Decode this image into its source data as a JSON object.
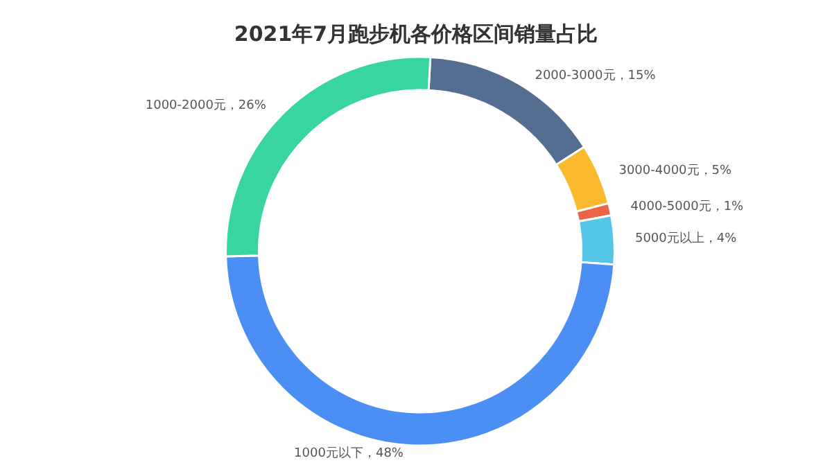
{
  "chart_data": {
    "type": "donut",
    "title": "2021年7月跑步机各价格区间销量占比",
    "categories": [
      "2000-3000元",
      "3000-4000元",
      "4000-5000元",
      "5000元以上",
      "1000元以下",
      "1000-2000元"
    ],
    "values": [
      15,
      5,
      1,
      4,
      48,
      26
    ],
    "value_labels": [
      "15%",
      "5%",
      "1%",
      "4%",
      "48%",
      "26%"
    ],
    "colors": [
      "#546e91",
      "#fbb92d",
      "#ec6447",
      "#56c6e8",
      "#4b8ff5",
      "#39d5a0"
    ],
    "legend": false
  }
}
